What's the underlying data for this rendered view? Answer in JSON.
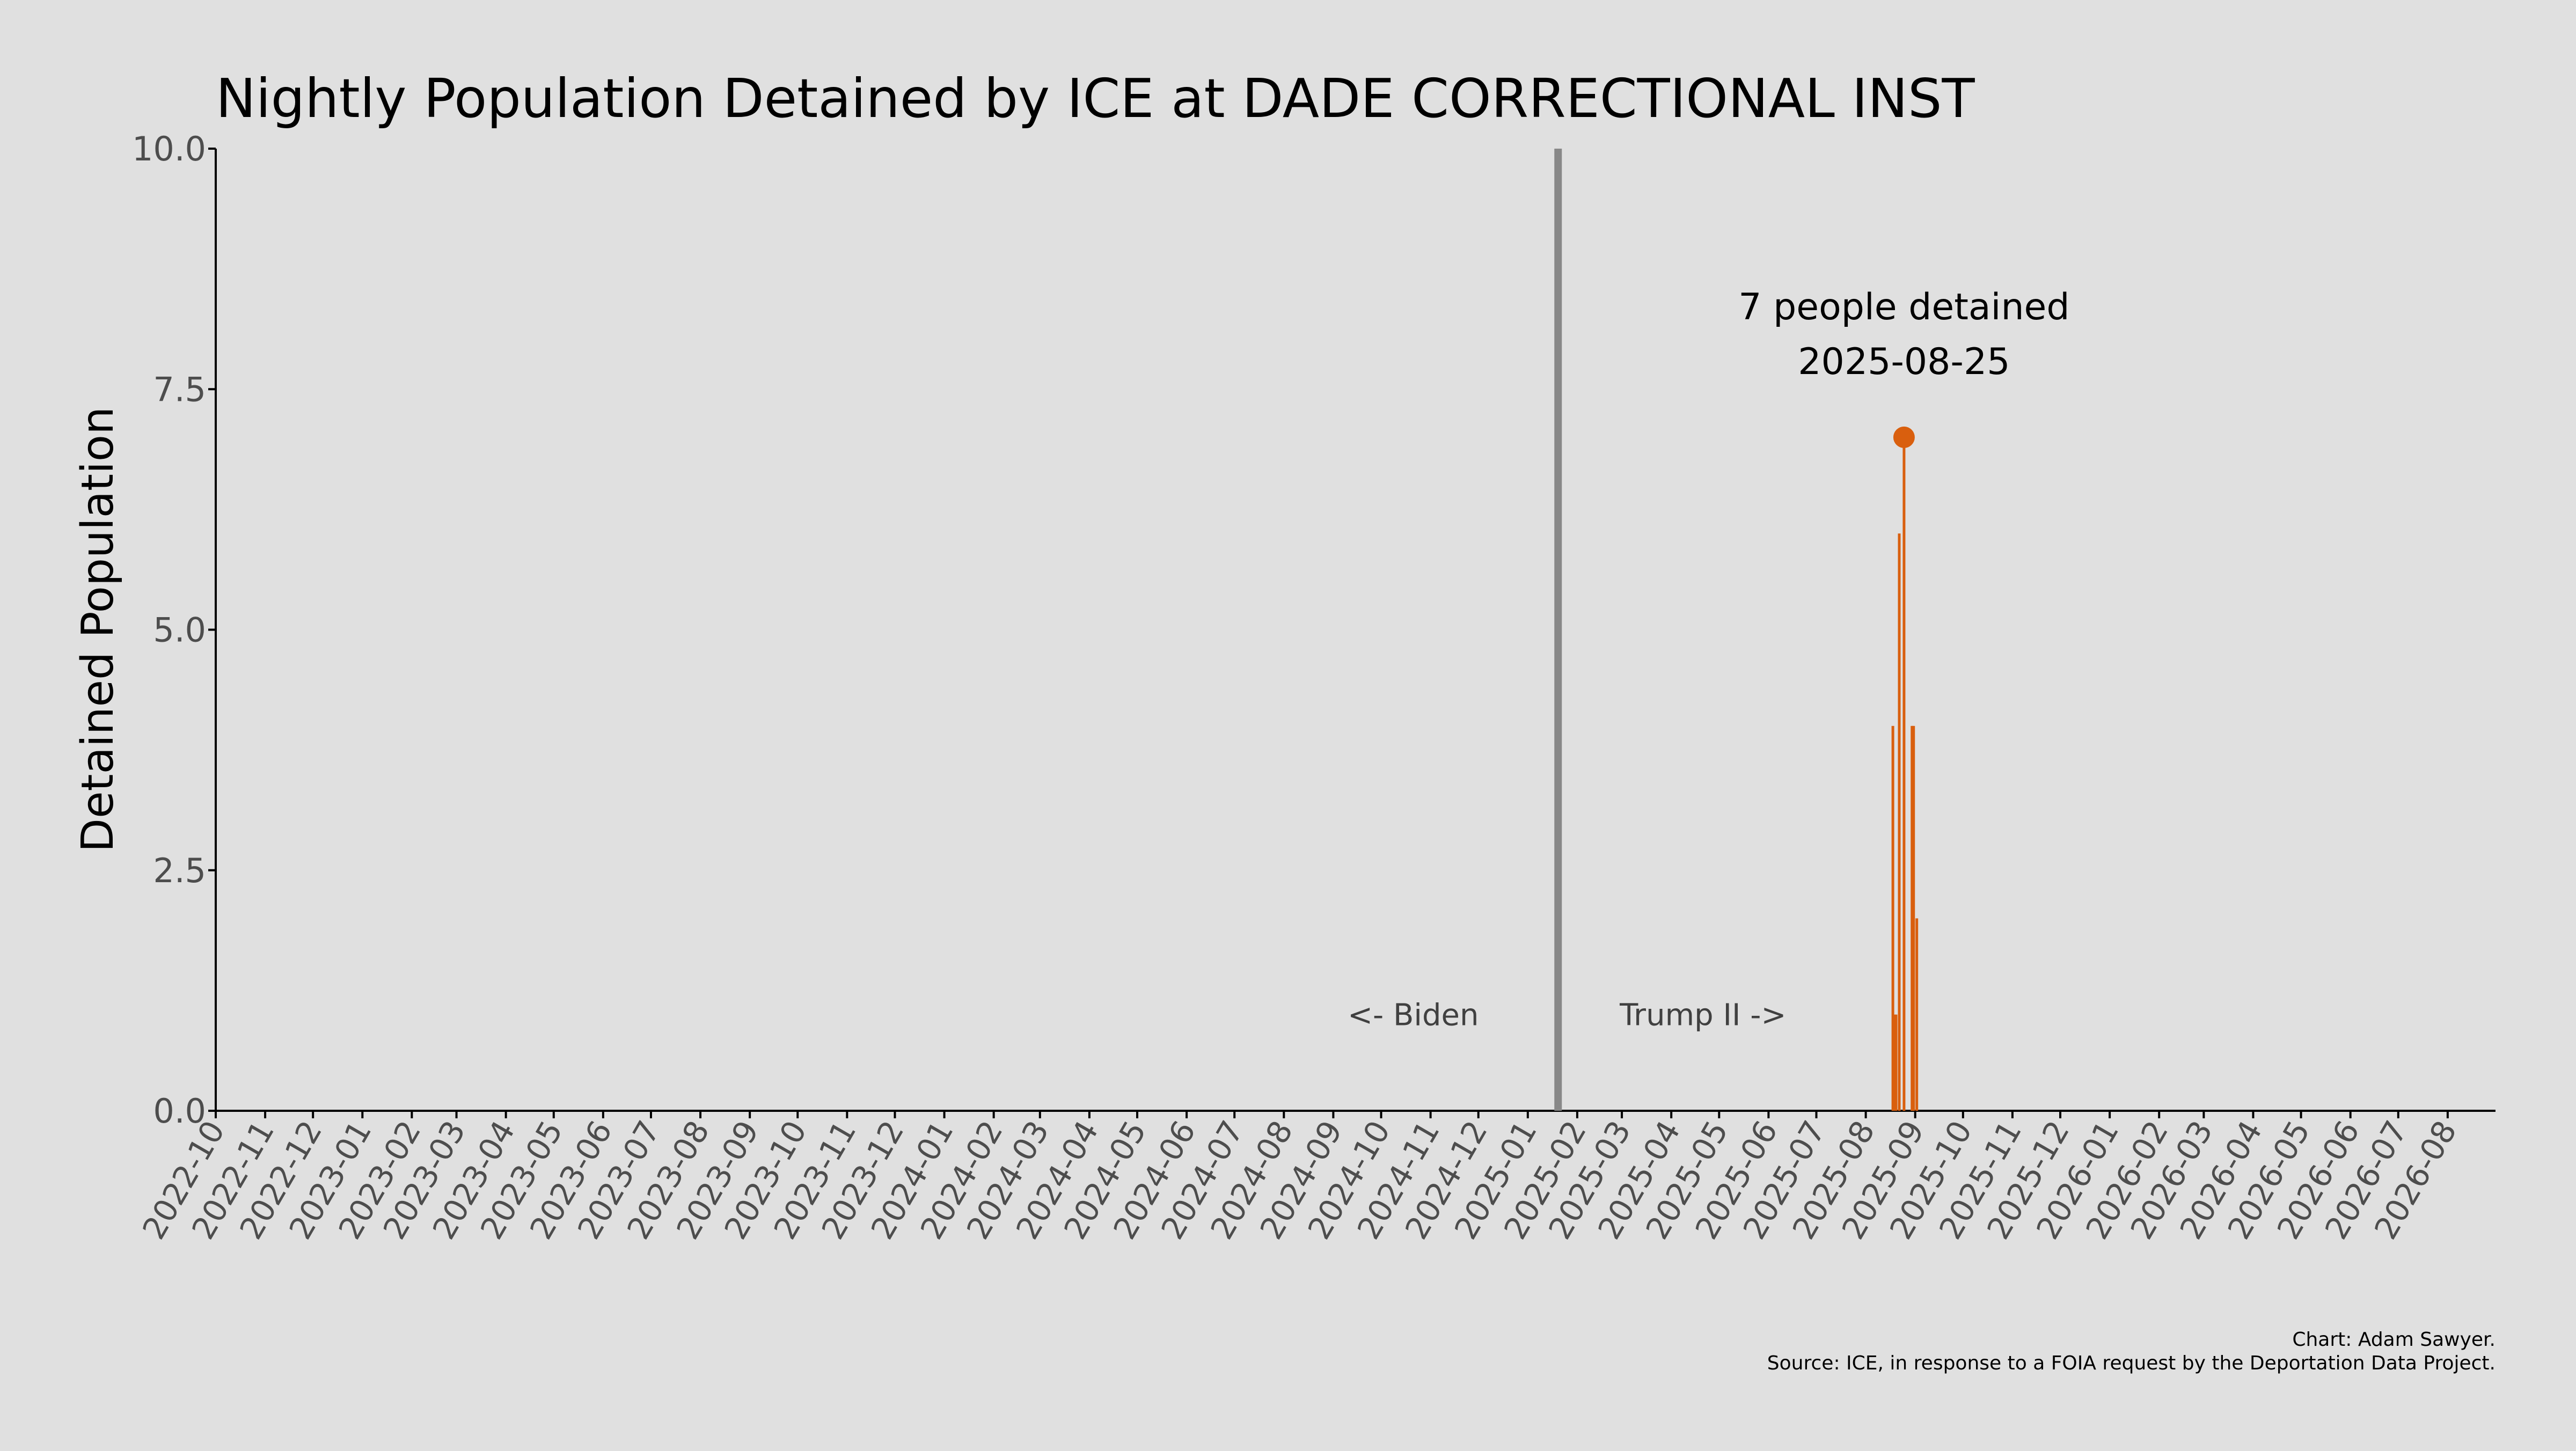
{
  "chart_data": {
    "type": "bar",
    "title": "Nightly Population Detained by ICE at DADE CORRECTIONAL INST",
    "ylabel": "Detained Population",
    "xlabel": "",
    "ylim": [
      0,
      10
    ],
    "yticks": [
      "0.0",
      "2.5",
      "5.0",
      "7.5",
      "10.0"
    ],
    "xlim": [
      "2022-10-01",
      "2026-08-31"
    ],
    "xtick_labels": [
      "2022-10",
      "2022-11",
      "2022-12",
      "2023-01",
      "2023-02",
      "2023-03",
      "2023-04",
      "2023-05",
      "2023-06",
      "2023-07",
      "2023-08",
      "2023-09",
      "2023-10",
      "2023-11",
      "2023-12",
      "2024-01",
      "2024-02",
      "2024-03",
      "2024-04",
      "2024-05",
      "2024-06",
      "2024-07",
      "2024-08",
      "2024-09",
      "2024-10",
      "2024-11",
      "2024-12",
      "2025-01",
      "2025-02",
      "2025-03",
      "2025-04",
      "2025-05",
      "2025-06",
      "2025-07",
      "2025-08",
      "2025-09",
      "2025-10",
      "2025-11",
      "2025-12",
      "2026-01",
      "2026-02",
      "2026-03",
      "2026-04",
      "2026-05",
      "2026-06",
      "2026-07",
      "2026-08"
    ],
    "grid": false,
    "series": [
      {
        "color": "#d95f0e",
        "points": [
          {
            "date": "2025-08-18",
            "value": 4
          },
          {
            "date": "2025-08-19",
            "value": 1
          },
          {
            "date": "2025-08-20",
            "value": 1
          },
          {
            "date": "2025-08-22",
            "value": 6
          },
          {
            "date": "2025-08-25",
            "value": 7
          },
          {
            "date": "2025-08-30",
            "value": 4
          },
          {
            "date": "2025-08-31",
            "value": 4
          },
          {
            "date": "2025-09-02",
            "value": 2
          }
        ]
      }
    ],
    "vline": {
      "date": "2025-01-20",
      "color": "#888888"
    },
    "era_labels": {
      "left": "<- Biden",
      "right": "Trump II ->"
    },
    "peak": {
      "date": "2025-08-25",
      "value": 7,
      "label_line1": "7 people detained",
      "label_line2": "2025-08-25",
      "color": "#d95f0e"
    },
    "credit": "Chart: Adam Sawyer.",
    "source": "Source: ICE, in response to a FOIA request by the Deportation Data Project."
  }
}
